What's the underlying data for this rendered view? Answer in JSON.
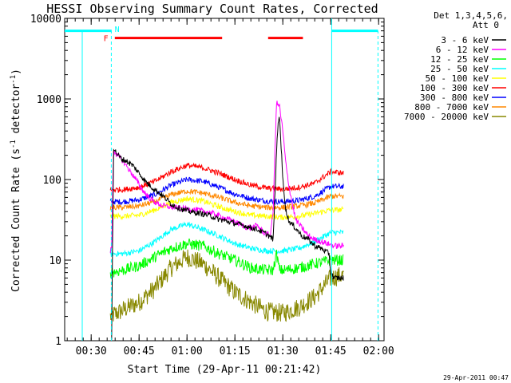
{
  "chart_data": {
    "type": "line",
    "title": "HESSI Observing Summary Count Rates, Corrected",
    "xlabel": "Start Time (29-Apr-11 00:21:42)",
    "ylabel": "Corrected Count Rate (s",
    "ylabel_sup": "-1",
    "ylabel_mid": " detector",
    "ylabel_end": ")",
    "x_unit": "minutes since 00:00 UT",
    "xlim": [
      21.7,
      121.7
    ],
    "ylim": [
      1,
      10000
    ],
    "y_scale": "log",
    "x_ticks": [
      {
        "v": 30,
        "label": "00:30"
      },
      {
        "v": 45,
        "label": "00:45"
      },
      {
        "v": 60,
        "label": "01:00"
      },
      {
        "v": 75,
        "label": "01:15"
      },
      {
        "v": 90,
        "label": "01:30"
      },
      {
        "v": 105,
        "label": "01:45"
      },
      {
        "v": 120,
        "label": "02:00"
      }
    ],
    "y_ticks": [
      {
        "v": 1,
        "label": "1"
      },
      {
        "v": 10,
        "label": "10"
      },
      {
        "v": 100,
        "label": "100"
      },
      {
        "v": 1000,
        "label": "1000"
      },
      {
        "v": 10000,
        "label": "10000"
      }
    ],
    "legend_title_1": "Det 1,3,4,5,6,",
    "legend_title_2": "Att 0",
    "legend_position": "right, outside plot",
    "series": [
      {
        "name": "3 - 6 keV",
        "color": "#000000",
        "x": [
          36.4,
          37,
          38,
          39.5,
          41,
          43,
          45,
          47,
          49,
          51,
          53,
          55,
          57,
          59,
          61,
          64,
          67,
          70,
          73,
          76,
          79,
          82,
          85,
          87,
          88,
          88.5,
          89,
          90,
          91,
          92,
          94,
          96,
          98,
          100,
          102,
          104.5,
          105,
          106,
          108,
          109
        ],
        "y": [
          1,
          250,
          210,
          180,
          170,
          150,
          120,
          95,
          80,
          70,
          60,
          50,
          45,
          42,
          40,
          38,
          36,
          32,
          30,
          28,
          26,
          24,
          21,
          18,
          200,
          500,
          600,
          100,
          40,
          30,
          25,
          20,
          18,
          15,
          14,
          12,
          7,
          6,
          6,
          6
        ]
      },
      {
        "name": "6 - 12 keV",
        "color": "#ff00ff",
        "x": [
          36,
          36.4,
          37,
          38,
          40,
          42,
          44,
          46,
          48,
          50,
          52,
          54,
          56,
          58,
          60,
          63,
          66,
          69,
          72,
          75,
          78,
          80,
          82,
          84,
          86,
          87,
          87.5,
          88,
          89,
          90,
          91,
          92,
          93,
          94,
          96,
          98,
          100,
          102,
          104,
          106,
          109
        ],
        "y": [
          13,
          14,
          240,
          200,
          170,
          130,
          100,
          75,
          60,
          52,
          48,
          46,
          45,
          44,
          43,
          42,
          40,
          37,
          33,
          30,
          26,
          25,
          27,
          22,
          20,
          40,
          200,
          900,
          800,
          400,
          150,
          80,
          50,
          32,
          25,
          20,
          18,
          17,
          16,
          15,
          15
        ]
      },
      {
        "name": "12 - 25 keV",
        "color": "#00ff00",
        "x": [
          36,
          40,
          45,
          50,
          55,
          60,
          65,
          70,
          75,
          80,
          85,
          87,
          88,
          89,
          90,
          95,
          100,
          105,
          109
        ],
        "y": [
          7,
          7.5,
          8.5,
          11,
          14,
          16,
          15,
          12,
          10,
          8,
          7.5,
          7.5,
          12,
          7.5,
          7.5,
          8,
          9,
          10,
          10
        ]
      },
      {
        "name": "25 - 50 keV",
        "color": "#00ffff",
        "x": [
          36,
          40,
          45,
          50,
          55,
          60,
          65,
          70,
          75,
          80,
          85,
          90,
          95,
          100,
          105,
          109
        ],
        "y": [
          12,
          12,
          13,
          17,
          24,
          28,
          24,
          20,
          16,
          14,
          13,
          13,
          14,
          17,
          22,
          22
        ]
      },
      {
        "name": "50 - 100 keV",
        "color": "#ffff00",
        "x": [
          36,
          40,
          45,
          50,
          55,
          60,
          65,
          70,
          75,
          80,
          85,
          90,
          95,
          100,
          105,
          109
        ],
        "y": [
          35,
          35,
          36,
          42,
          52,
          58,
          54,
          46,
          40,
          36,
          35,
          34,
          35,
          38,
          42,
          42
        ]
      },
      {
        "name": "100 - 300 keV",
        "color": "#ff0000",
        "x": [
          36,
          40,
          45,
          50,
          55,
          60,
          65,
          70,
          75,
          80,
          85,
          90,
          95,
          100,
          105,
          109
        ],
        "y": [
          75,
          75,
          80,
          95,
          125,
          150,
          140,
          120,
          100,
          85,
          78,
          76,
          80,
          90,
          125,
          120
        ]
      },
      {
        "name": "300 - 800 keV",
        "color": "#0000ff",
        "x": [
          36,
          40,
          45,
          50,
          55,
          60,
          65,
          70,
          75,
          80,
          85,
          90,
          95,
          100,
          105,
          109
        ],
        "y": [
          53,
          53,
          56,
          65,
          85,
          100,
          95,
          80,
          66,
          58,
          54,
          53,
          55,
          62,
          82,
          82
        ]
      },
      {
        "name": "800 - 7000 keV",
        "color": "#ff8800",
        "x": [
          36,
          40,
          45,
          50,
          55,
          60,
          65,
          70,
          75,
          80,
          85,
          90,
          95,
          100,
          105,
          109
        ],
        "y": [
          45,
          45,
          47,
          53,
          65,
          72,
          68,
          60,
          52,
          47,
          45,
          45,
          47,
          51,
          62,
          62
        ]
      },
      {
        "name": "7000 - 20000 keV",
        "color": "#888800",
        "x": [
          36,
          40,
          45,
          50,
          55,
          60,
          65,
          70,
          75,
          80,
          85,
          90,
          95,
          100,
          105,
          109
        ],
        "y": [
          2,
          2.4,
          3,
          4.5,
          8,
          11,
          9,
          6,
          4,
          3,
          2.3,
          2.2,
          2.6,
          3.5,
          6,
          6.5
        ]
      }
    ],
    "flags": [
      {
        "label": "",
        "color": "#00ffff",
        "y": 7000,
        "x": [
          21.7,
          36.4
        ]
      },
      {
        "label": "",
        "color": "#00ffff",
        "y": 7000,
        "x": [
          105.3,
          119.8
        ]
      },
      {
        "label": "",
        "color": "#ff0000",
        "y": 5700,
        "x": [
          37.4,
          71
        ]
      },
      {
        "label": "",
        "color": "#ff0000",
        "y": 5700,
        "x": [
          85.4,
          96.3
        ]
      }
    ],
    "flag_letters": [
      {
        "text": "F",
        "color": "#ff0000",
        "x": 34.6,
        "y": 5700
      },
      {
        "text": "N",
        "color": "#00ffff",
        "x": 38.1,
        "y": 7400
      }
    ],
    "markers": [
      {
        "color": "#00ffff",
        "style": "solid",
        "x": 27.2,
        "y": [
          1,
          7000
        ]
      },
      {
        "color": "#00ffff",
        "style": "dashed",
        "x": 36.3,
        "y": [
          1,
          7000
        ]
      },
      {
        "color": "#00ffff",
        "style": "solid",
        "x": 105.3,
        "y": [
          1,
          10000
        ]
      },
      {
        "color": "#00ffff",
        "style": "dashed",
        "x": 119.8,
        "y": [
          1,
          7000
        ]
      }
    ],
    "footer": "29-Apr-2011 00:47"
  }
}
